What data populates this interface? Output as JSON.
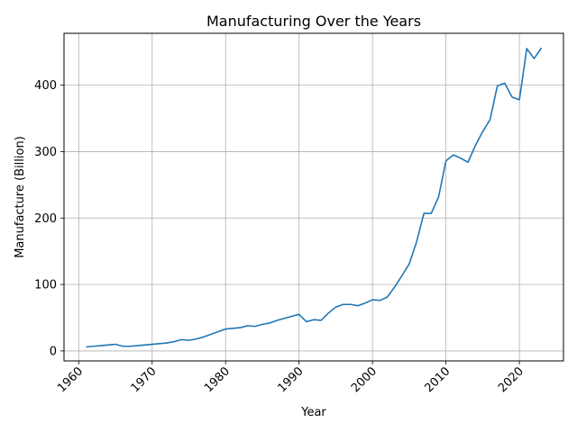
{
  "chart_data": {
    "type": "line",
    "title": "Manufacturing Over the Years",
    "xlabel": "Year",
    "ylabel": "Manufacture (Billion)",
    "xlim": [
      1958,
      2026
    ],
    "ylim": [
      -15,
      478
    ],
    "xticks": [
      1960,
      1970,
      1980,
      1990,
      2000,
      2010,
      2020
    ],
    "yticks": [
      0,
      100,
      200,
      300,
      400
    ],
    "grid": true,
    "line_color": "#1f77b4",
    "series": [
      {
        "x": [
          1961,
          1962,
          1963,
          1964,
          1965,
          1966,
          1967,
          1968,
          1969,
          1970,
          1971,
          1972,
          1973,
          1974,
          1975,
          1976,
          1977,
          1978,
          1979,
          1980,
          1981,
          1982,
          1983,
          1984,
          1985,
          1986,
          1987,
          1988,
          1989,
          1990,
          1991,
          1992,
          1993,
          1994,
          1995,
          1996,
          1997,
          1998,
          1999,
          2000,
          2001,
          2002,
          2003,
          2004,
          2005,
          2006,
          2007,
          2008,
          2009,
          2010,
          2011,
          2012,
          2013,
          2014,
          2015,
          2016,
          2017,
          2018,
          2019,
          2020,
          2021,
          2022,
          2023
        ],
        "values": [
          6,
          7,
          8,
          9,
          10,
          7,
          7,
          8,
          9,
          10,
          11,
          12,
          14,
          17,
          16,
          18,
          21,
          25,
          29,
          33,
          34,
          35,
          38,
          37,
          40,
          42,
          46,
          49,
          52,
          55,
          44,
          47,
          46,
          57,
          66,
          70,
          70,
          68,
          72,
          77,
          76,
          81,
          96,
          113,
          131,
          164,
          207,
          207,
          232,
          286,
          295,
          290,
          284,
          309,
          330,
          348,
          399,
          403,
          382,
          378,
          455,
          440,
          456
        ]
      }
    ]
  }
}
